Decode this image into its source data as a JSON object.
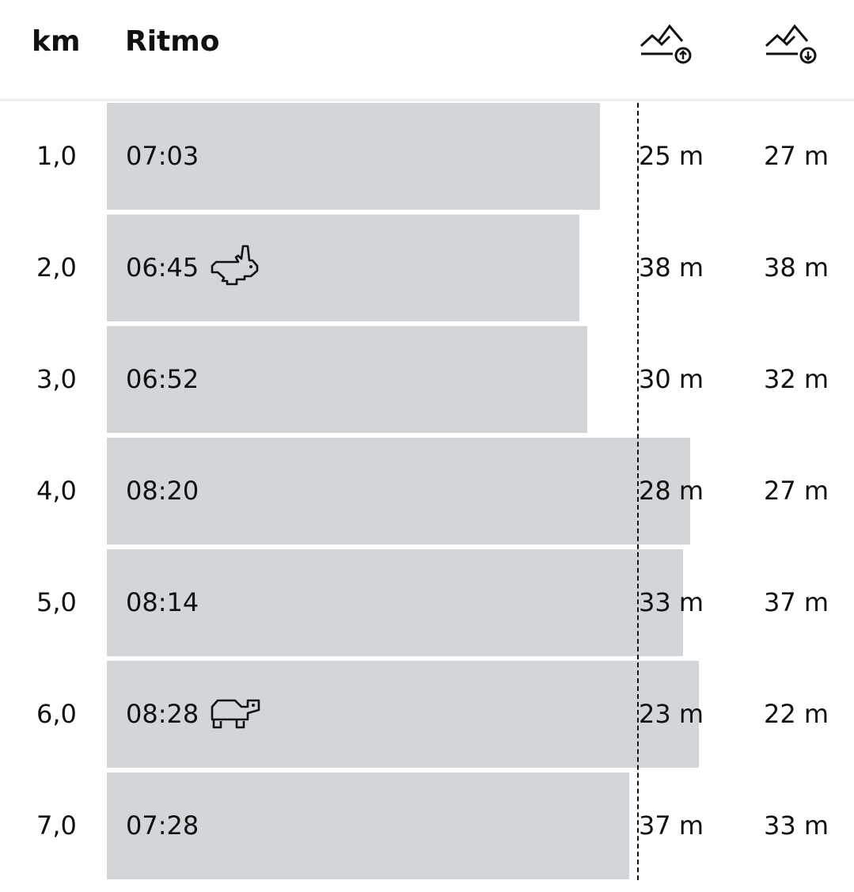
{
  "header": {
    "km_label": "km",
    "pace_label": "Ritmo",
    "ascent_icon": "mountain-ascent-icon",
    "descent_icon": "mountain-descent-icon"
  },
  "colors": {
    "bar": "#d3d6d9",
    "text": "#111111",
    "average_line": "#111111"
  },
  "average_pace": "07:35",
  "max_pace_scale": "09:20",
  "laps": [
    {
      "km": "1,0",
      "pace": "07:03",
      "ascent": "25 m",
      "descent": "27 m",
      "badge": null
    },
    {
      "km": "2,0",
      "pace": "06:45",
      "ascent": "38 m",
      "descent": "38 m",
      "badge": "rabbit-icon"
    },
    {
      "km": "3,0",
      "pace": "06:52",
      "ascent": "30 m",
      "descent": "32 m",
      "badge": null
    },
    {
      "km": "4,0",
      "pace": "08:20",
      "ascent": "28 m",
      "descent": "27 m",
      "badge": null
    },
    {
      "km": "5,0",
      "pace": "08:14",
      "ascent": "33 m",
      "descent": "37 m",
      "badge": null
    },
    {
      "km": "6,0",
      "pace": "08:28",
      "ascent": "23 m",
      "descent": "22 m",
      "badge": "turtle-icon"
    },
    {
      "km": "7,0",
      "pace": "07:28",
      "ascent": "37 m",
      "descent": "33 m",
      "badge": null
    }
  ]
}
